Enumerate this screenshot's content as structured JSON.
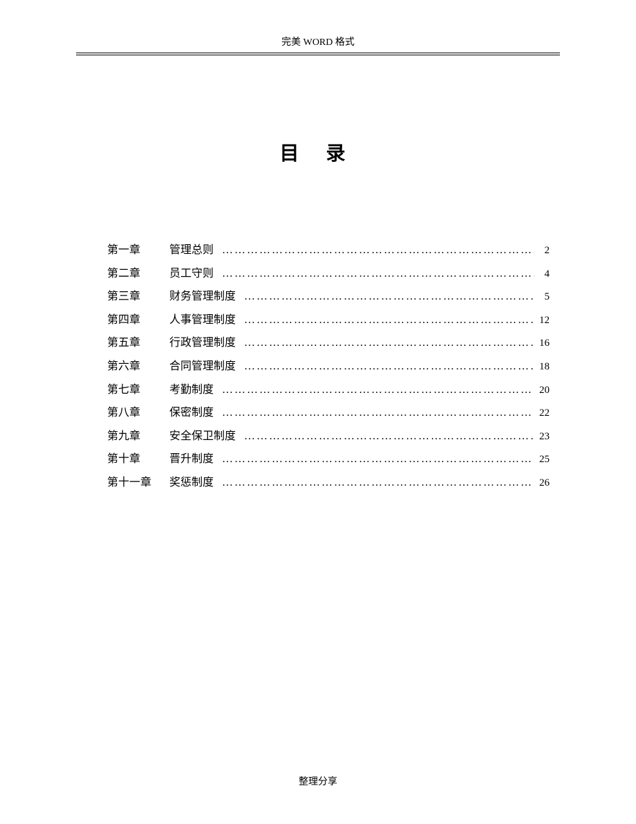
{
  "header": {
    "text": "完美 WORD 格式"
  },
  "title": "目  录",
  "toc": {
    "entries": [
      {
        "chapter": "第一章",
        "section": "管理总则",
        "page": "2"
      },
      {
        "chapter": "第二章",
        "section": "员工守则",
        "page": "4"
      },
      {
        "chapter": "第三章",
        "section": "财务管理制度",
        "page": "5"
      },
      {
        "chapter": "第四章",
        "section": "人事管理制度",
        "page": "12"
      },
      {
        "chapter": "第五章",
        "section": "行政管理制度",
        "page": "16"
      },
      {
        "chapter": "第六章",
        "section": "合同管理制度",
        "page": "18"
      },
      {
        "chapter": "第七章",
        "section": "考勤制度",
        "page": "20"
      },
      {
        "chapter": "第八章",
        "section": "保密制度",
        "page": "22"
      },
      {
        "chapter": "第九章",
        "section": "安全保卫制度",
        "page": "23"
      },
      {
        "chapter": "第十章",
        "section": "晋升制度",
        "page": "25"
      },
      {
        "chapter": "第十一章",
        "section": "奖惩制度",
        "page": "26"
      }
    ]
  },
  "footer": {
    "text": "整理分享"
  },
  "style": {
    "background_color": "#ffffff",
    "text_color": "#000000",
    "header_fontsize": 14,
    "title_fontsize": 28,
    "body_fontsize": 16,
    "footer_fontsize": 14,
    "font_family": "SimSun"
  }
}
